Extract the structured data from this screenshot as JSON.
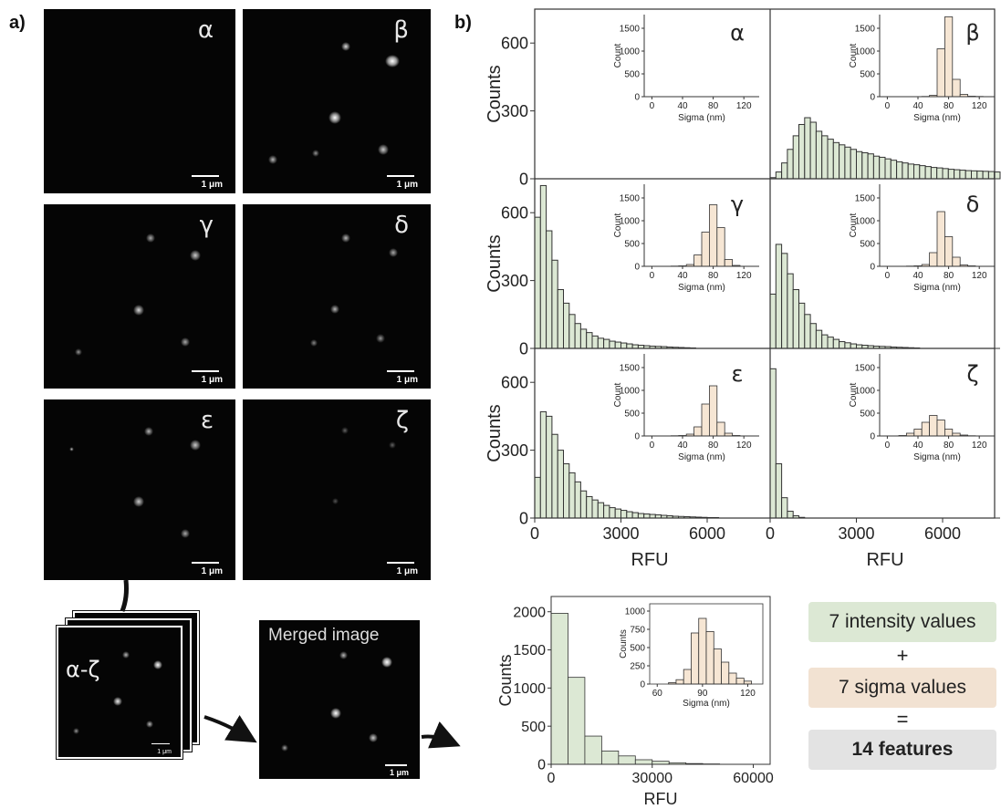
{
  "panel_a_label": "a)",
  "panel_b_label": "b)",
  "micrographs": [
    {
      "greek": "α",
      "scale": "1 μm"
    },
    {
      "greek": "β",
      "scale": "1 μm"
    },
    {
      "greek": "γ",
      "scale": "1 μm"
    },
    {
      "greek": "δ",
      "scale": "1 μm"
    },
    {
      "greek": "ε",
      "scale": "1 μm"
    },
    {
      "greek": "ζ",
      "scale": "1 μm"
    }
  ],
  "stack": {
    "label": "α-ζ",
    "scale": "1 μm"
  },
  "merged": {
    "title": "Merged image",
    "scale": "1 μm"
  },
  "features": {
    "intensity": "7 intensity values",
    "plus": "+",
    "sigma": "7 sigma values",
    "equals": "=",
    "total": "14 features",
    "colors": {
      "intensity": "#dce8d4",
      "sigma": "#f2e2d2",
      "total": "#e3e3e3"
    }
  },
  "chart_data": [
    {
      "type": "bar",
      "panel": "α",
      "xlabel": "",
      "ylabel": "Counts",
      "x": [],
      "values": [],
      "ylim": [
        0,
        750
      ],
      "xlim": [
        0,
        8000
      ],
      "yticks": [
        0,
        300,
        600
      ],
      "xticks": [],
      "inset": {
        "xlabel": "Sigma (nm)",
        "ylabel": "Count",
        "xticks": [
          0,
          40,
          80,
          120
        ],
        "yticks": [
          0,
          500,
          1000,
          1500
        ],
        "xlim": [
          -10,
          140
        ],
        "ylim": [
          0,
          1800
        ],
        "x": [],
        "values": []
      }
    },
    {
      "type": "bar",
      "panel": "β",
      "xlabel": "",
      "ylabel": "",
      "x": [
        100,
        300,
        500,
        700,
        900,
        1100,
        1300,
        1500,
        1700,
        1900,
        2100,
        2300,
        2500,
        2700,
        2900,
        3100,
        3300,
        3500,
        3700,
        3900,
        4100,
        4300,
        4500,
        4700,
        4900,
        5100,
        5300,
        5500,
        5700,
        5900,
        6100,
        6300,
        6500,
        6700,
        6900,
        7100,
        7300,
        7500,
        7700,
        7900
      ],
      "values": [
        5,
        30,
        70,
        130,
        190,
        240,
        270,
        250,
        210,
        190,
        175,
        160,
        150,
        140,
        130,
        120,
        115,
        110,
        100,
        95,
        88,
        82,
        75,
        70,
        65,
        62,
        58,
        54,
        50,
        48,
        45,
        42,
        40,
        38,
        36,
        35,
        34,
        33,
        32,
        30
      ],
      "ylim": [
        0,
        750
      ],
      "xlim": [
        0,
        8000
      ],
      "yticks": [],
      "xticks": [],
      "inset": {
        "xlabel": "Sigma (nm)",
        "ylabel": "Count",
        "xticks": [
          0,
          40,
          80,
          120
        ],
        "yticks": [
          0,
          500,
          1000,
          1500
        ],
        "xlim": [
          -10,
          140
        ],
        "ylim": [
          0,
          1800
        ],
        "x": [
          50,
          60,
          70,
          80,
          90,
          100,
          110,
          120
        ],
        "values": [
          5,
          30,
          1050,
          1750,
          380,
          50,
          10,
          5
        ]
      }
    },
    {
      "type": "bar",
      "panel": "γ",
      "xlabel": "",
      "ylabel": "Counts",
      "x": [
        100,
        300,
        500,
        700,
        900,
        1100,
        1300,
        1500,
        1700,
        1900,
        2100,
        2300,
        2500,
        2700,
        2900,
        3100,
        3300,
        3500,
        3700,
        3900,
        4100,
        4300,
        4500,
        4700,
        4900,
        5100,
        5300,
        5500
      ],
      "values": [
        580,
        720,
        520,
        390,
        260,
        200,
        150,
        110,
        85,
        70,
        55,
        45,
        40,
        32,
        28,
        24,
        20,
        16,
        14,
        12,
        10,
        9,
        8,
        6,
        5,
        4,
        3,
        2
      ],
      "ylim": [
        0,
        750
      ],
      "xlim": [
        0,
        8000
      ],
      "yticks": [
        0,
        300,
        600
      ],
      "xticks": [],
      "inset": {
        "xlabel": "Sigma (nm)",
        "ylabel": "Count",
        "xticks": [
          0,
          40,
          80,
          120
        ],
        "yticks": [
          0,
          500,
          1000,
          1500
        ],
        "xlim": [
          -10,
          140
        ],
        "ylim": [
          0,
          1800
        ],
        "x": [
          30,
          40,
          50,
          60,
          70,
          80,
          90,
          100,
          110
        ],
        "values": [
          5,
          10,
          40,
          250,
          750,
          1350,
          850,
          150,
          20
        ]
      }
    },
    {
      "type": "bar",
      "panel": "δ",
      "xlabel": "",
      "ylabel": "",
      "x": [
        100,
        300,
        500,
        700,
        900,
        1100,
        1300,
        1500,
        1700,
        1900,
        2100,
        2300,
        2500,
        2700,
        2900,
        3100,
        3300,
        3500,
        3700,
        3900,
        4100,
        4300,
        4500,
        4700,
        4900,
        5100
      ],
      "values": [
        240,
        460,
        420,
        330,
        260,
        200,
        150,
        110,
        80,
        60,
        50,
        40,
        30,
        25,
        20,
        16,
        14,
        12,
        10,
        9,
        8,
        6,
        5,
        4,
        3,
        2
      ],
      "ylim": [
        0,
        750
      ],
      "xlim": [
        0,
        8000
      ],
      "yticks": [],
      "xticks": [],
      "inset": {
        "xlabel": "Sigma (nm)",
        "ylabel": "Count",
        "xticks": [
          0,
          40,
          80,
          120
        ],
        "yticks": [
          0,
          500,
          1000,
          1500
        ],
        "xlim": [
          -10,
          140
        ],
        "ylim": [
          0,
          1800
        ],
        "x": [
          30,
          40,
          50,
          60,
          70,
          80,
          90,
          100,
          110
        ],
        "values": [
          5,
          10,
          40,
          300,
          1200,
          650,
          200,
          30,
          10
        ]
      }
    },
    {
      "type": "bar",
      "panel": "ε",
      "xlabel": "RFU",
      "ylabel": "Counts",
      "x": [
        100,
        300,
        500,
        700,
        900,
        1100,
        1300,
        1500,
        1700,
        1900,
        2100,
        2300,
        2500,
        2700,
        2900,
        3100,
        3300,
        3500,
        3700,
        3900,
        4100,
        4300,
        4500,
        4700,
        4900,
        5100,
        5300,
        5500,
        5700,
        5900,
        6100,
        6300
      ],
      "values": [
        180,
        470,
        450,
        370,
        300,
        240,
        200,
        160,
        120,
        95,
        80,
        68,
        56,
        46,
        40,
        34,
        28,
        24,
        20,
        18,
        16,
        14,
        12,
        10,
        8,
        7,
        6,
        5,
        4,
        3,
        2,
        2
      ],
      "ylim": [
        0,
        750
      ],
      "xlim": [
        0,
        8000
      ],
      "yticks": [
        0,
        300,
        600
      ],
      "xticks": [
        0,
        3000,
        6000
      ],
      "inset": {
        "xlabel": "Sigma (nm)",
        "ylabel": "Count",
        "xticks": [
          0,
          40,
          80,
          120
        ],
        "yticks": [
          0,
          500,
          1000,
          1500
        ],
        "xlim": [
          -10,
          140
        ],
        "ylim": [
          0,
          1800
        ],
        "x": [
          30,
          40,
          50,
          60,
          70,
          80,
          90,
          100,
          110
        ],
        "values": [
          5,
          10,
          40,
          200,
          700,
          1100,
          300,
          60,
          10
        ]
      }
    },
    {
      "type": "bar",
      "panel": "ζ",
      "xlabel": "RFU",
      "ylabel": "",
      "x": [
        100,
        300,
        500,
        700,
        900,
        1100
      ],
      "values": [
        660,
        240,
        90,
        30,
        10,
        3
      ],
      "ylim": [
        0,
        750
      ],
      "xlim": [
        0,
        8000
      ],
      "yticks": [],
      "xticks": [
        0,
        3000,
        6000
      ],
      "inset": {
        "xlabel": "Sigma (nm)",
        "ylabel": "Count",
        "xticks": [
          0,
          40,
          80,
          120
        ],
        "yticks": [
          0,
          500,
          1000,
          1500
        ],
        "xlim": [
          -10,
          140
        ],
        "ylim": [
          0,
          1800
        ],
        "x": [
          20,
          30,
          40,
          50,
          60,
          70,
          80,
          90,
          100,
          110
        ],
        "values": [
          10,
          60,
          150,
          300,
          450,
          350,
          150,
          60,
          20,
          5
        ]
      }
    },
    {
      "type": "bar",
      "panel": "merged",
      "xlabel": "RFU",
      "ylabel": "Counts",
      "x": [
        2500,
        7500,
        12500,
        17500,
        22500,
        27500,
        32500,
        37500,
        42500,
        47500
      ],
      "values": [
        1980,
        1140,
        370,
        175,
        110,
        60,
        40,
        20,
        10,
        5
      ],
      "ylim": [
        0,
        2200
      ],
      "xlim": [
        0,
        65000
      ],
      "yticks": [
        0,
        500,
        1000,
        1500,
        2000
      ],
      "xticks": [
        0,
        30000,
        60000
      ],
      "inset": {
        "xlabel": "Sigma (nm)",
        "ylabel": "Counts",
        "xticks": [
          60,
          90,
          120
        ],
        "yticks": [
          0,
          250,
          500,
          750,
          1000
        ],
        "xlim": [
          55,
          130
        ],
        "ylim": [
          0,
          1100
        ],
        "x": [
          70,
          75,
          80,
          85,
          90,
          95,
          100,
          105,
          110,
          115,
          120
        ],
        "values": [
          20,
          60,
          200,
          700,
          900,
          720,
          480,
          300,
          150,
          80,
          40
        ]
      }
    }
  ]
}
